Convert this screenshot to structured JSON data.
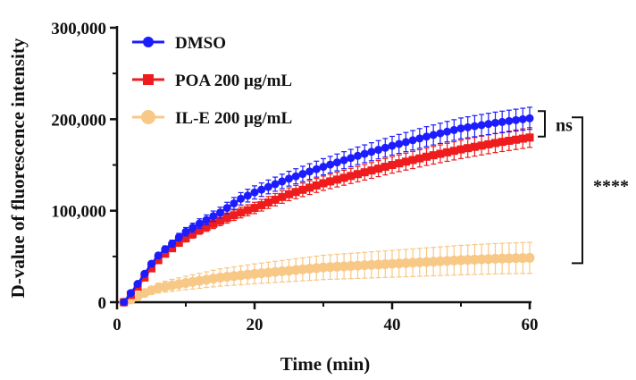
{
  "chart_data": {
    "type": "line",
    "title": "",
    "xlabel": "Time (min)",
    "ylabel": "D-value of fluorescence intensity",
    "xlim": [
      0,
      60
    ],
    "ylim": [
      0,
      300000
    ],
    "x_ticks": [
      0,
      20,
      40,
      60
    ],
    "x_tick_labels": [
      "0",
      "20",
      "40",
      "60"
    ],
    "y_ticks": [
      0,
      100000,
      200000,
      300000
    ],
    "y_tick_labels": [
      "0",
      "100,000",
      "200,000",
      "300,000"
    ],
    "legend_position": "top-left",
    "grid": false,
    "series": [
      {
        "name": "DMSO",
        "color": "#1c1cff",
        "marker": "circle",
        "err_frac": 0.06,
        "curve": [
          [
            1,
            0
          ],
          [
            2,
            10000
          ],
          [
            3,
            20000
          ],
          [
            4,
            31000
          ],
          [
            5,
            42000
          ],
          [
            6,
            51000
          ],
          [
            7,
            58000
          ],
          [
            8,
            64000
          ],
          [
            9,
            71000
          ],
          [
            10,
            77000
          ],
          [
            12,
            86000
          ],
          [
            15,
            98000
          ],
          [
            18,
            113000
          ],
          [
            20,
            120000
          ],
          [
            25,
            135000
          ],
          [
            30,
            148000
          ],
          [
            35,
            160000
          ],
          [
            40,
            171000
          ],
          [
            45,
            181000
          ],
          [
            50,
            190000
          ],
          [
            55,
            196000
          ],
          [
            60,
            201000
          ]
        ]
      },
      {
        "name": "POA 200 μg/mL",
        "color": "#ee1c1c",
        "marker": "square",
        "err_frac": 0.06,
        "curve": [
          [
            1,
            0
          ],
          [
            2,
            8000
          ],
          [
            3,
            17000
          ],
          [
            4,
            27000
          ],
          [
            5,
            37000
          ],
          [
            6,
            46000
          ],
          [
            7,
            53000
          ],
          [
            8,
            59000
          ],
          [
            9,
            65000
          ],
          [
            10,
            70000
          ],
          [
            12,
            79000
          ],
          [
            15,
            89000
          ],
          [
            18,
            98000
          ],
          [
            20,
            103000
          ],
          [
            25,
            118000
          ],
          [
            30,
            130000
          ],
          [
            35,
            140000
          ],
          [
            40,
            150000
          ],
          [
            45,
            159000
          ],
          [
            50,
            167000
          ],
          [
            55,
            174000
          ],
          [
            60,
            180000
          ]
        ]
      },
      {
        "name": "IL-E 200 μg/mL",
        "color": "#f8c886",
        "marker": "circle",
        "err_frac": 0.35,
        "curve": [
          [
            1,
            0
          ],
          [
            2,
            3000
          ],
          [
            3,
            6500
          ],
          [
            4,
            10000
          ],
          [
            5,
            13000
          ],
          [
            6,
            15500
          ],
          [
            8,
            18500
          ],
          [
            10,
            21000
          ],
          [
            15,
            27000
          ],
          [
            20,
            31000
          ],
          [
            25,
            34500
          ],
          [
            30,
            38000
          ],
          [
            35,
            40000
          ],
          [
            40,
            42000
          ],
          [
            45,
            44000
          ],
          [
            50,
            46000
          ],
          [
            55,
            47500
          ],
          [
            60,
            48500
          ]
        ]
      }
    ],
    "annotations": [
      {
        "label": "ns",
        "from_series": 0,
        "to_series": 1
      },
      {
        "label": "****",
        "from_series": 0,
        "to_series": 2
      }
    ]
  }
}
